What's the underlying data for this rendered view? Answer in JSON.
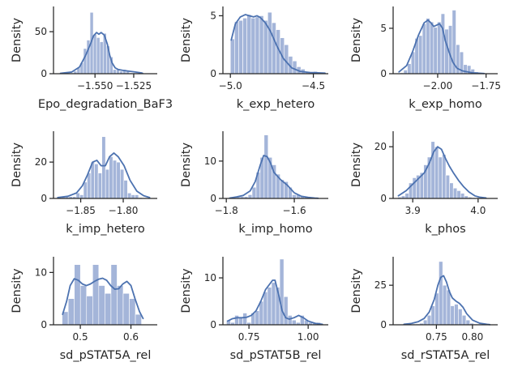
{
  "colors": {
    "bar": "#a4b5d9",
    "kde": "#4c72b0",
    "axis": "#262626"
  },
  "chart_data": [
    {
      "type": "histogram",
      "xlabel": "Epo_degradation_BaF3",
      "ylabel": "Density",
      "xlim": [
        -1.5768,
        -1.5098
      ],
      "ylim": [
        0,
        80
      ],
      "xticks": [
        {
          "value": -1.55,
          "label": "−1.550"
        },
        {
          "value": -1.525,
          "label": "−1.525"
        }
      ],
      "yticks": [
        {
          "value": 0,
          "label": "0"
        },
        {
          "value": 50,
          "label": "50"
        }
      ],
      "bin_start": -1.5723,
      "bin_width": 0.00212,
      "values": [
        1,
        1,
        2,
        1,
        3,
        7,
        13,
        30,
        40,
        73,
        47,
        43,
        38,
        48,
        33,
        20,
        5,
        5,
        3,
        5,
        3,
        1,
        1,
        1,
        1
      ],
      "kde_x": [
        -1.5723,
        -1.565,
        -1.56,
        -1.556,
        -1.553,
        -1.551,
        -1.549,
        -1.5475,
        -1.546,
        -1.544,
        -1.542,
        -1.5405,
        -1.539,
        -1.537,
        -1.535,
        -1.532,
        -1.528,
        -1.524,
        -1.52,
        -1.5193
      ],
      "kde_y": [
        0.5,
        2,
        8,
        22,
        35,
        45,
        49,
        47,
        49,
        46,
        35,
        22,
        13,
        7,
        5,
        4,
        3,
        2,
        1,
        0.5
      ]
    },
    {
      "type": "histogram",
      "xlabel": "k_exp_hetero",
      "ylabel": "Density",
      "xlim": [
        -5.045,
        -4.41
      ],
      "ylim": [
        0,
        5.8
      ],
      "xticks": [
        {
          "value": -5.0,
          "label": "−5.0"
        },
        {
          "value": -4.5,
          "label": "−4.5"
        }
      ],
      "yticks": [
        {
          "value": 0,
          "label": "0"
        },
        {
          "value": 5,
          "label": "5"
        }
      ],
      "bin_start": -5.0,
      "bin_width": 0.025,
      "values": [
        3.0,
        4.5,
        4.6,
        4.8,
        5.1,
        4.8,
        4.9,
        5.0,
        4.6,
        5.3,
        4.4,
        3.8,
        3.1,
        2.5,
        1.5,
        1.1,
        0.6,
        0.4,
        0.2,
        0.1,
        0.2,
        0.1,
        0.1
      ],
      "kde_x": [
        -4.995,
        -4.97,
        -4.94,
        -4.91,
        -4.885,
        -4.86,
        -4.84,
        -4.82,
        -4.79,
        -4.76,
        -4.72,
        -4.68,
        -4.63,
        -4.58,
        -4.52,
        -4.43
      ],
      "kde_y": [
        2.9,
        4.3,
        4.9,
        5.1,
        5.0,
        4.9,
        5.0,
        4.85,
        4.4,
        3.7,
        2.4,
        1.3,
        0.5,
        0.2,
        0.1,
        0.05
      ]
    },
    {
      "type": "histogram",
      "xlabel": "k_exp_homo",
      "ylabel": "Density",
      "xlim": [
        -2.23,
        -1.69
      ],
      "ylim": [
        0,
        7.4
      ],
      "xticks": [
        {
          "value": -2.0,
          "label": "−2.00"
        },
        {
          "value": -1.75,
          "label": "−1.75"
        }
      ],
      "yticks": [
        {
          "value": 0,
          "label": "0"
        },
        {
          "value": 5,
          "label": "5"
        }
      ],
      "bin_start": -2.195,
      "bin_width": 0.0193,
      "values": [
        0.1,
        0.4,
        1.1,
        2.4,
        3.9,
        4.2,
        5.5,
        6.1,
        5.7,
        5.1,
        5.7,
        6.6,
        4.9,
        5.3,
        7.0,
        3.2,
        2.4,
        1.0,
        0.9,
        0.5,
        0.2,
        0.1
      ],
      "kde_x": [
        -2.2,
        -2.16,
        -2.13,
        -2.1,
        -2.07,
        -2.05,
        -2.035,
        -2.02,
        -2.0,
        -1.99,
        -1.975,
        -1.96,
        -1.94,
        -1.92,
        -1.9,
        -1.87,
        -1.82,
        -1.76
      ],
      "kde_y": [
        0.2,
        0.9,
        2.4,
        4.2,
        5.6,
        5.9,
        5.6,
        5.2,
        5.4,
        5.5,
        5.0,
        3.6,
        2.3,
        1.2,
        0.6,
        0.3,
        0.1,
        0.02
      ]
    },
    {
      "type": "histogram",
      "xlabel": "k_imp_hetero",
      "ylabel": "Density",
      "xlim": [
        -1.882,
        -1.76
      ],
      "ylim": [
        0,
        37
      ],
      "xticks": [
        {
          "value": -1.85,
          "label": "−1.85"
        },
        {
          "value": -1.8,
          "label": "−1.80"
        }
      ],
      "yticks": [
        {
          "value": 0,
          "label": "0"
        },
        {
          "value": 20,
          "label": "20"
        }
      ],
      "bin_start": -1.877,
      "bin_width": 0.00432,
      "values": [
        1,
        1,
        1,
        1,
        1,
        3,
        2,
        9,
        14,
        20,
        19,
        14,
        34,
        16,
        23,
        21,
        20,
        16,
        10,
        3,
        2,
        2,
        0.5
      ],
      "kde_x": [
        -1.877,
        -1.865,
        -1.855,
        -1.848,
        -1.842,
        -1.836,
        -1.831,
        -1.826,
        -1.821,
        -1.816,
        -1.811,
        -1.806,
        -1.799,
        -1.792,
        -1.784,
        -1.776,
        -1.769
      ],
      "kde_y": [
        0.5,
        1.2,
        3,
        7,
        13,
        20,
        21,
        18,
        18,
        23,
        25,
        23,
        18,
        10,
        4,
        1.5,
        0.5
      ]
    },
    {
      "type": "histogram",
      "xlabel": "k_imp_homo",
      "ylabel": "Density",
      "xlim": [
        -1.81,
        -1.5
      ],
      "ylim": [
        0,
        18
      ],
      "xticks": [
        {
          "value": -1.8,
          "label": "−1.8"
        },
        {
          "value": -1.6,
          "label": "−1.6"
        }
      ],
      "yticks": [
        {
          "value": 0,
          "label": "0"
        },
        {
          "value": 10,
          "label": "10"
        }
      ],
      "bin_start": -1.795,
      "bin_width": 0.0118,
      "values": [
        0.2,
        0.4,
        0.5,
        0.5,
        0.5,
        1,
        3,
        7,
        11,
        17,
        11,
        9,
        6.5,
        5,
        4.5,
        3,
        1,
        1,
        0.5,
        0.3,
        0.2,
        0.2
      ],
      "kde_x": [
        -1.79,
        -1.77,
        -1.75,
        -1.73,
        -1.715,
        -1.7,
        -1.69,
        -1.68,
        -1.67,
        -1.66,
        -1.64,
        -1.62,
        -1.6,
        -1.58,
        -1.56,
        -1.54,
        -1.53
      ],
      "kde_y": [
        0.1,
        0.4,
        0.8,
        2,
        4.5,
        9,
        11.5,
        11.2,
        9.5,
        7,
        5,
        3.5,
        1.5,
        0.6,
        0.3,
        0.1,
        0.05
      ]
    },
    {
      "type": "histogram",
      "xlabel": "k_phos",
      "ylabel": "Density",
      "xlim": [
        3.87,
        4.03
      ],
      "ylim": [
        0,
        26
      ],
      "xticks": [
        {
          "value": 3.9,
          "label": "3.9"
        },
        {
          "value": 4.0,
          "label": "4.0"
        }
      ],
      "yticks": [
        {
          "value": 0,
          "label": "0"
        },
        {
          "value": 20,
          "label": "20"
        }
      ],
      "bin_start": 3.877,
      "bin_width": 0.00567,
      "values": [
        0.5,
        1,
        2,
        6,
        8,
        9,
        10,
        13,
        16,
        22,
        20,
        16,
        17,
        9,
        6,
        4,
        3,
        2,
        1,
        0.5,
        0.3
      ],
      "kde_x": [
        3.878,
        3.89,
        3.9,
        3.91,
        3.918,
        3.926,
        3.932,
        3.938,
        3.944,
        3.95,
        3.956,
        3.962,
        3.97,
        3.978,
        3.986,
        3.995,
        4.002,
        4.012
      ],
      "kde_y": [
        1,
        3,
        5.5,
        8,
        10,
        14,
        18,
        20,
        19,
        15.5,
        12.5,
        10,
        7,
        4.5,
        2.5,
        1,
        0.5,
        0.2
      ]
    },
    {
      "type": "histogram",
      "xlabel": "sd_pSTAT5A_rel",
      "ylabel": "Density",
      "xlim": [
        0.447,
        0.652
      ],
      "ylim": [
        0,
        13
      ],
      "xticks": [
        {
          "value": 0.5,
          "label": "0.5"
        },
        {
          "value": 0.6,
          "label": "0.6"
        }
      ],
      "yticks": [
        {
          "value": 0,
          "label": "0"
        },
        {
          "value": 10,
          "label": "10"
        }
      ],
      "bin_start": 0.464,
      "bin_width": 0.01207,
      "values": [
        2.5,
        5,
        11.5,
        7.5,
        5.5,
        11.5,
        7.5,
        6,
        11.5,
        7.5,
        6,
        5,
        2
      ],
      "kde_x": [
        0.465,
        0.473,
        0.48,
        0.488,
        0.496,
        0.504,
        0.512,
        0.52,
        0.528,
        0.536,
        0.544,
        0.552,
        0.56,
        0.568,
        0.576,
        0.584,
        0.592,
        0.6,
        0.608,
        0.617,
        0.624
      ],
      "kde_y": [
        2,
        4.5,
        7.5,
        8.8,
        8.5,
        7.8,
        7.5,
        7.8,
        8.3,
        8.7,
        8.9,
        8.5,
        7.5,
        6.8,
        6.9,
        7.8,
        8.3,
        7.5,
        5,
        2.5,
        1.2
      ]
    },
    {
      "type": "histogram",
      "xlabel": "sd_pSTAT5B_rel",
      "ylabel": "Density",
      "xlim": [
        0.64,
        1.085
      ],
      "ylim": [
        0,
        14.5
      ],
      "xticks": [
        {
          "value": 0.75,
          "label": "0.75"
        },
        {
          "value": 1.0,
          "label": "1.00"
        }
      ],
      "yticks": [
        {
          "value": 0,
          "label": "0"
        },
        {
          "value": 10,
          "label": "10"
        }
      ],
      "bin_start": 0.655,
      "bin_width": 0.0173,
      "values": [
        1,
        0.5,
        2,
        1.5,
        2.5,
        0.5,
        2.5,
        3,
        5,
        7,
        8,
        9,
        8,
        14,
        6,
        2,
        1,
        0.5,
        2,
        1,
        0.5,
        0.5,
        0.5
      ],
      "kde_x": [
        0.66,
        0.68,
        0.7,
        0.72,
        0.74,
        0.76,
        0.78,
        0.8,
        0.82,
        0.835,
        0.85,
        0.86,
        0.875,
        0.89,
        0.905,
        0.92,
        0.94,
        0.96,
        0.98,
        1.0,
        1.03,
        1.06
      ],
      "kde_y": [
        0.8,
        1.3,
        1.5,
        1.5,
        1.6,
        2,
        3,
        5,
        7.5,
        8.5,
        9.5,
        9.5,
        6.5,
        3,
        1.5,
        1.2,
        1.5,
        2,
        1.5,
        0.8,
        0.3,
        0.1
      ]
    },
    {
      "type": "histogram",
      "xlabel": "sd_rSTAT5A_rel",
      "ylabel": "Density",
      "xlim": [
        0.69,
        0.835
      ],
      "ylim": [
        0,
        43
      ],
      "xticks": [
        {
          "value": 0.75,
          "label": "0.75"
        },
        {
          "value": 0.8,
          "label": "0.80"
        }
      ],
      "yticks": [
        {
          "value": 0,
          "label": "0"
        },
        {
          "value": 25,
          "label": "25"
        }
      ],
      "bin_start": 0.705,
      "bin_width": 0.00538,
      "values": [
        1,
        0.5,
        0.5,
        0.5,
        1,
        3,
        6,
        12,
        20,
        40,
        25,
        22,
        12,
        13,
        10,
        6,
        3,
        1,
        0.5,
        0.5,
        0.5,
        0.5
      ],
      "kde_x": [
        0.705,
        0.715,
        0.725,
        0.733,
        0.74,
        0.747,
        0.752,
        0.756,
        0.76,
        0.764,
        0.768,
        0.772,
        0.777,
        0.782,
        0.787,
        0.792,
        0.8,
        0.81,
        0.82,
        0.824
      ],
      "kde_y": [
        0.3,
        0.8,
        2,
        4,
        8,
        16,
        25,
        30,
        31,
        27,
        21,
        17,
        15,
        13.5,
        11,
        7,
        3,
        1,
        0.3,
        0.1
      ]
    }
  ]
}
